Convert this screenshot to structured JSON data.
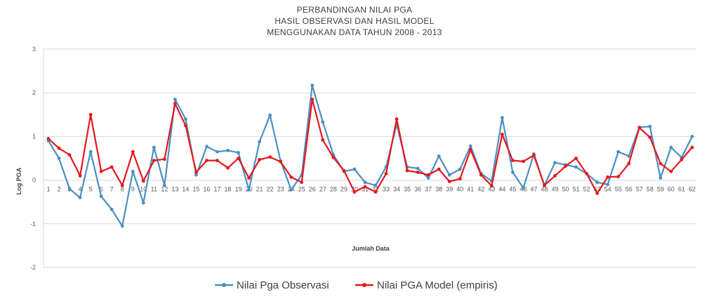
{
  "chart_data": {
    "type": "line",
    "title_lines": [
      "PERBANDINGAN NILAI PGA",
      "HASIL OBSERVASI DAN HASIL MODEL",
      "MENGGUNAKAN DATA TAHUN 2008 - 2013"
    ],
    "xlabel": "Jumlah Data",
    "ylabel": "Log PGA",
    "ylim": [
      -2,
      3
    ],
    "yticks": [
      -2,
      -1,
      0,
      1,
      2,
      3
    ],
    "grid": true,
    "legend_position": "bottom",
    "x": [
      1,
      2,
      3,
      4,
      5,
      6,
      7,
      8,
      9,
      10,
      11,
      12,
      13,
      14,
      15,
      16,
      17,
      18,
      19,
      20,
      21,
      22,
      23,
      24,
      25,
      26,
      27,
      28,
      29,
      30,
      31,
      32,
      33,
      34,
      35,
      36,
      37,
      38,
      39,
      40,
      41,
      42,
      43,
      44,
      45,
      46,
      47,
      48,
      49,
      50,
      51,
      52,
      53,
      54,
      55,
      56,
      57,
      58,
      59,
      60,
      61,
      62
    ],
    "series": [
      {
        "name": "Nilai Pga Observasi",
        "color": "#4a8fc4",
        "values": [
          0.9,
          0.5,
          -0.2,
          -0.4,
          0.65,
          -0.37,
          -0.67,
          -1.05,
          0.2,
          -0.52,
          0.75,
          -0.12,
          1.85,
          1.4,
          0.12,
          0.77,
          0.65,
          0.68,
          0.63,
          -0.22,
          0.88,
          1.49,
          0.44,
          -0.22,
          0.12,
          2.17,
          1.33,
          0.58,
          0.2,
          0.25,
          -0.05,
          -0.12,
          0.3,
          1.28,
          0.3,
          0.27,
          0.05,
          0.55,
          0.12,
          0.25,
          0.78,
          0.15,
          -0.02,
          1.43,
          0.18,
          -0.18,
          0.6,
          -0.12,
          0.4,
          0.35,
          0.3,
          0.15,
          -0.05,
          -0.1,
          0.65,
          0.55,
          1.21,
          1.23,
          0.05,
          0.75,
          0.52,
          1.0
        ]
      },
      {
        "name": "Nilai PGA Model (empiris)",
        "color": "#e8161b",
        "values": [
          0.95,
          0.73,
          0.58,
          0.1,
          1.5,
          0.2,
          0.3,
          -0.12,
          0.65,
          -0.02,
          0.45,
          0.48,
          1.75,
          1.25,
          0.18,
          0.45,
          0.45,
          0.28,
          0.5,
          0.05,
          0.47,
          0.53,
          0.42,
          0.07,
          -0.05,
          1.85,
          0.92,
          0.52,
          0.22,
          -0.27,
          -0.15,
          -0.27,
          0.15,
          1.4,
          0.22,
          0.18,
          0.12,
          0.25,
          -0.03,
          0.03,
          0.7,
          0.12,
          -0.13,
          1.05,
          0.45,
          0.43,
          0.57,
          -0.12,
          0.1,
          0.32,
          0.5,
          0.15,
          -0.3,
          0.07,
          0.08,
          0.38,
          1.2,
          0.98,
          0.38,
          0.2,
          0.47,
          0.75
        ]
      }
    ]
  }
}
